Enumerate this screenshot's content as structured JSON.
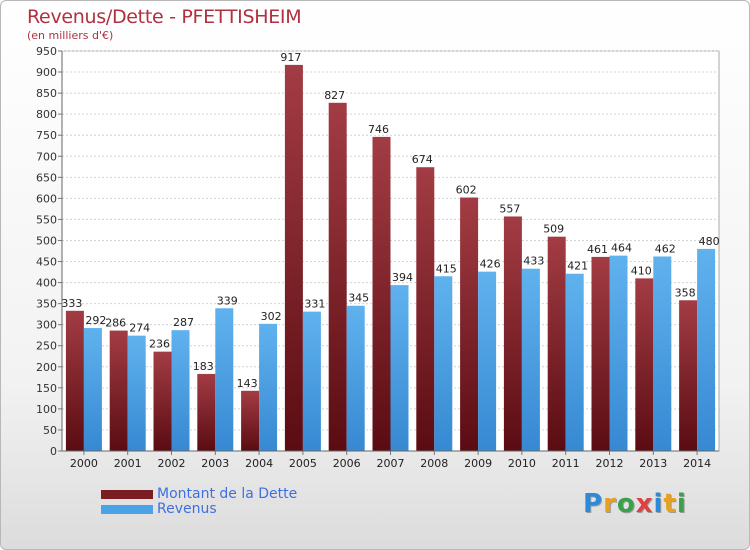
{
  "header": {
    "title": "Revenus/Dette - PFETTISHEIM",
    "subtitle": "(en milliers d'€)"
  },
  "legend": {
    "items": [
      {
        "label": "Montant de la Dette",
        "color": "#7a1e24"
      },
      {
        "label": "Revenus",
        "color": "#4aa3e6"
      }
    ]
  },
  "logo": {
    "letters": [
      {
        "char": "P",
        "color": "#2d8ad8"
      },
      {
        "char": "r",
        "color": "#e8a020"
      },
      {
        "char": "o",
        "color": "#3aa04a"
      },
      {
        "char": "x",
        "color": "#e04040"
      },
      {
        "char": "i",
        "color": "#2d8ad8"
      },
      {
        "char": "t",
        "color": "#e8a020"
      },
      {
        "char": "i",
        "color": "#3aa04a"
      }
    ]
  },
  "chart_data": {
    "type": "bar",
    "title": "Revenus/Dette - PFETTISHEIM",
    "subtitle": "(en milliers d'€)",
    "categories": [
      "2000",
      "2001",
      "2002",
      "2003",
      "2004",
      "2005",
      "2006",
      "2007",
      "2008",
      "2009",
      "2010",
      "2011",
      "2012",
      "2013",
      "2014"
    ],
    "series": [
      {
        "name": "Montant de la Dette",
        "color": "#7a1e24",
        "values": [
          333,
          286,
          236,
          183,
          143,
          917,
          827,
          746,
          674,
          602,
          557,
          509,
          461,
          410,
          358
        ]
      },
      {
        "name": "Revenus",
        "color": "#4aa3e6",
        "values": [
          292,
          274,
          287,
          339,
          302,
          331,
          345,
          394,
          415,
          426,
          433,
          421,
          464,
          462,
          480
        ]
      }
    ],
    "ylim": [
      0,
      950
    ],
    "yticks": [
      0,
      50,
      100,
      150,
      200,
      250,
      300,
      350,
      400,
      450,
      500,
      550,
      600,
      650,
      700,
      750,
      800,
      850,
      900,
      950
    ],
    "grid": true,
    "legend_position": "bottom-left"
  }
}
